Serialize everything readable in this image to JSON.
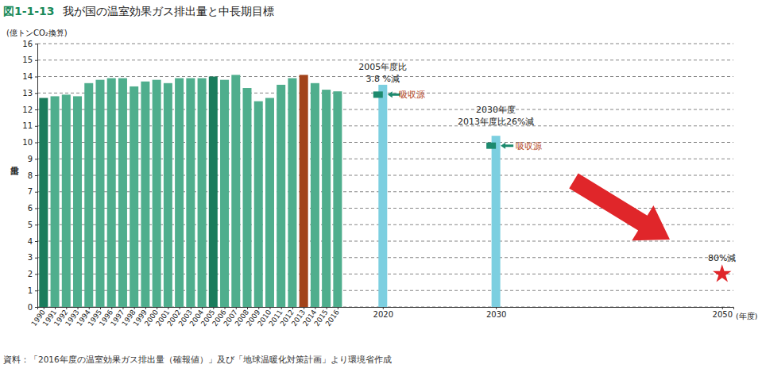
{
  "chart_data": {
    "type": "bar",
    "figure_number": "図1-1-13",
    "title": "我が国の温室効果ガス排出量と中長期目標",
    "y_unit": "(億トンCO₂換算)",
    "ylabel": "排出量",
    "xlabel": "(年度)",
    "source": "資料：「2016年度の温室効果ガス排出量（確報値）」及び「地球温暖化対策計画」より環境省作成",
    "xlim": [
      1989.45,
      2051
    ],
    "ylim": [
      0,
      16
    ],
    "xticks": [
      1990,
      1991,
      1992,
      1993,
      1994,
      1995,
      1996,
      1997,
      1998,
      1999,
      2000,
      2001,
      2002,
      2003,
      2004,
      2005,
      2006,
      2007,
      2008,
      2009,
      2010,
      2011,
      2012,
      2013,
      2014,
      2015,
      2016,
      2020,
      2030,
      2050
    ],
    "yticks": [
      0,
      1,
      2,
      3,
      4,
      5,
      6,
      7,
      8,
      9,
      10,
      11,
      12,
      13,
      14,
      15,
      16
    ],
    "grid": true,
    "series": [
      {
        "type": "bar",
        "x": [
          1990,
          1991,
          1992,
          1993,
          1994,
          1995,
          1996,
          1997,
          1998,
          1999,
          2000,
          2001,
          2002,
          2003,
          2004,
          2005,
          2006,
          2007,
          2008,
          2009,
          2010,
          2011,
          2012,
          2013,
          2014,
          2015,
          2016
        ],
        "values": [
          12.7,
          12.8,
          12.9,
          12.8,
          13.6,
          13.8,
          13.9,
          13.9,
          13.4,
          13.7,
          13.8,
          13.6,
          13.9,
          13.9,
          13.9,
          14.0,
          13.8,
          14.1,
          13.3,
          12.5,
          12.7,
          13.5,
          13.9,
          14.1,
          13.6,
          13.2,
          13.1
        ],
        "colors": [
          "#1b7c5c",
          "#4fae8d",
          "#4fae8d",
          "#4fae8d",
          "#4fae8d",
          "#4fae8d",
          "#4fae8d",
          "#4fae8d",
          "#4fae8d",
          "#4fae8d",
          "#4fae8d",
          "#4fae8d",
          "#4fae8d",
          "#4fae8d",
          "#4fae8d",
          "#1b7c5c",
          "#4fae8d",
          "#4fae8d",
          "#4fae8d",
          "#4fae8d",
          "#4fae8d",
          "#4fae8d",
          "#4fae8d",
          "#a2431a",
          "#4fae8d",
          "#4fae8d",
          "#4fae8d"
        ]
      },
      {
        "type": "bar",
        "x": [
          2020,
          2030
        ],
        "values": [
          13.5,
          10.4
        ],
        "color": "#7ccfe0"
      },
      {
        "type": "scatter",
        "marker": "square",
        "x": [
          2020,
          2030
        ],
        "values": [
          12.9,
          9.8
        ],
        "color": "#1d8a6e"
      },
      {
        "type": "scatter",
        "marker": "star",
        "x": [
          2050
        ],
        "values": [
          2.0
        ],
        "color": "#e0262a"
      }
    ],
    "annotations": [
      {
        "text": [
          "2005年度比",
          "3.8 %減"
        ],
        "x": 2020,
        "y": 14.4,
        "color": "#222222"
      },
      {
        "text": "吸収源",
        "x": 2022.6,
        "y": 12.7,
        "color": "#b5461d"
      },
      {
        "text": [
          "2030年度",
          "2013年度比26%減"
        ],
        "x": 2030,
        "y": 11.8,
        "color": "#222222"
      },
      {
        "text": "吸収源",
        "x": 2032.9,
        "y": 9.6,
        "color": "#b5461d"
      },
      {
        "text": "80%減",
        "x": 2050,
        "y": 2.8,
        "color": "#222222"
      }
    ]
  }
}
